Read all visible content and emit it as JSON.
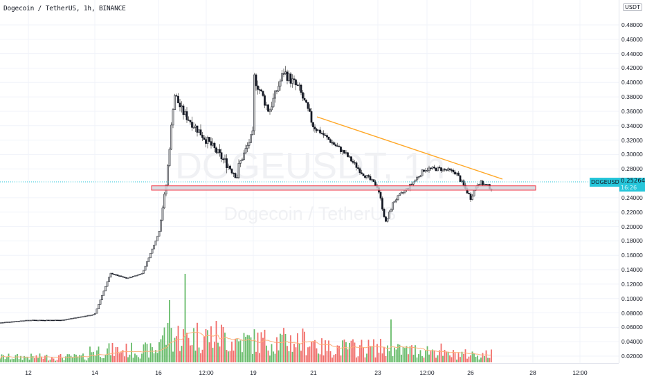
{
  "header": {
    "title": "Dogecoin / TetherUS, 1h, BINANCE"
  },
  "watermark": {
    "symbol": "DOGEUSDT, 1h",
    "description": "Dogecoin / TetherUS"
  },
  "price_axis": {
    "currency_badge": "USDT",
    "ticks": [
      "0.48000",
      "0.46000",
      "0.44000",
      "0.42000",
      "0.40000",
      "0.38000",
      "0.36000",
      "0.34000",
      "0.32000",
      "0.30000",
      "0.28000",
      "0.24000",
      "0.22000",
      "0.20000",
      "0.18000",
      "0.16000",
      "0.14000",
      "0.12000",
      "0.10000",
      "0.08000",
      "0.06000",
      "0.04000",
      "0.02000"
    ]
  },
  "time_axis": {
    "ticks": [
      "12",
      "14",
      "16",
      "12:00",
      "19",
      "21",
      "23",
      "12:00",
      "26",
      "28",
      "12:00"
    ]
  },
  "last_price": {
    "symbol": "DOGEUSDT",
    "value": "0.25264",
    "countdown": "16:26"
  },
  "colors": {
    "up": "#26a69a",
    "candle": "#131722",
    "volume_up": "#4caf50",
    "volume_down": "#ef5350",
    "trendline": "#ffa726",
    "support_zone_border": "#f23645",
    "support_zone_fill": "#d1d4dc",
    "last_price": "#26c6da",
    "volume_ma": "#ffb07a"
  },
  "chart_data": {
    "type": "candlestick",
    "title": "Dogecoin / TetherUS, 1h, BINANCE",
    "xlabel": "",
    "ylabel": "USDT",
    "ylim": [
      0.0,
      0.5
    ],
    "grid": true,
    "x_ticks": [
      "12",
      "14",
      "16",
      "12:00",
      "19",
      "21",
      "23",
      "12:00",
      "26",
      "28",
      "12:00"
    ],
    "approx_close_path": [
      {
        "x": "11",
        "price": 0.066
      },
      {
        "x": "12",
        "price": 0.07
      },
      {
        "x": "13",
        "price": 0.07
      },
      {
        "x": "14",
        "price": 0.078
      },
      {
        "x": "14 12:00",
        "price": 0.135
      },
      {
        "x": "15",
        "price": 0.128
      },
      {
        "x": "15 12:00",
        "price": 0.135
      },
      {
        "x": "16",
        "price": 0.19
      },
      {
        "x": "16 06:00",
        "price": 0.26
      },
      {
        "x": "16 12:00",
        "price": 0.385
      },
      {
        "x": "16 18:00",
        "price": 0.36
      },
      {
        "x": "17 12:00",
        "price": 0.27
      },
      {
        "x": "18",
        "price": 0.28
      },
      {
        "x": "18 12:00",
        "price": 0.33
      },
      {
        "x": "19",
        "price": 0.41
      },
      {
        "x": "19 12:00",
        "price": 0.36
      },
      {
        "x": "20",
        "price": 0.415
      },
      {
        "x": "20 12:00",
        "price": 0.39
      },
      {
        "x": "21",
        "price": 0.34
      },
      {
        "x": "21 12:00",
        "price": 0.32
      },
      {
        "x": "22",
        "price": 0.3
      },
      {
        "x": "22 12:00",
        "price": 0.275
      },
      {
        "x": "23",
        "price": 0.255
      },
      {
        "x": "23 06:00",
        "price": 0.205
      },
      {
        "x": "23 12:00",
        "price": 0.235
      },
      {
        "x": "24",
        "price": 0.255
      },
      {
        "x": "24 12:00",
        "price": 0.28
      },
      {
        "x": "25",
        "price": 0.28
      },
      {
        "x": "25 12:00",
        "price": 0.275
      },
      {
        "x": "26",
        "price": 0.24
      },
      {
        "x": "26 06:00",
        "price": 0.262
      },
      {
        "x": "26 12:00",
        "price": 0.25264
      }
    ],
    "key_levels": {
      "high": 0.45,
      "low_after_breakdown": 0.158,
      "support_zone": [
        0.25,
        0.256
      ],
      "descending_trendline": [
        {
          "x": "21",
          "price": 0.352
        },
        {
          "x": "26 14:00",
          "price": 0.272
        }
      ]
    },
    "volume_axis_max": 0.14,
    "last_price": 0.25264
  }
}
